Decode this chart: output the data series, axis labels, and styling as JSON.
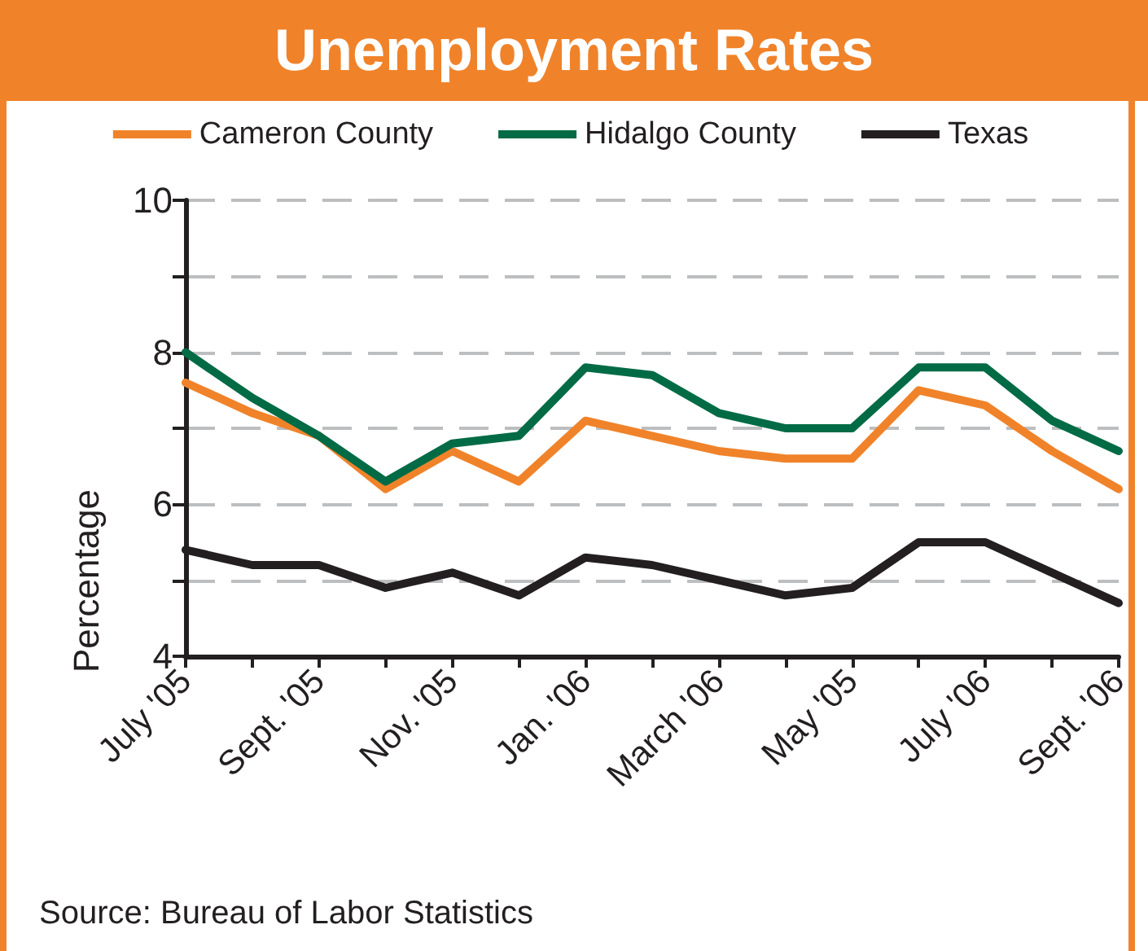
{
  "chart_data": {
    "type": "line",
    "title": "Unemployment Rates",
    "ylabel": "Percentage",
    "categories": [
      "July '05",
      null,
      "Sept. '05",
      null,
      "Nov. '05",
      null,
      "Jan. '06",
      null,
      "March '06",
      null,
      "May '05",
      null,
      "July '06",
      null,
      "Sept. '06"
    ],
    "series": [
      {
        "name": "Cameron County",
        "color": "#f0832a",
        "values": [
          7.6,
          7.2,
          6.9,
          6.2,
          6.7,
          6.3,
          7.1,
          6.9,
          6.7,
          6.6,
          6.6,
          7.5,
          7.3,
          6.7,
          6.2
        ]
      },
      {
        "name": "Hidalgo County",
        "color": "#006b45",
        "values": [
          8.0,
          7.4,
          6.9,
          6.3,
          6.8,
          6.9,
          7.8,
          7.7,
          7.2,
          7.0,
          7.0,
          7.8,
          7.8,
          7.1,
          6.7
        ]
      },
      {
        "name": "Texas",
        "color": "#231f20",
        "values": [
          5.4,
          5.2,
          5.2,
          4.9,
          5.1,
          4.8,
          5.3,
          5.2,
          5.0,
          4.8,
          4.9,
          5.5,
          5.5,
          5.1,
          4.7
        ]
      }
    ],
    "ylim": [
      4,
      10
    ],
    "yticks": [
      4,
      {
        "value": 5,
        "label": null
      },
      6,
      {
        "value": 7,
        "label": null
      },
      8,
      {
        "value": 9,
        "label": null
      },
      10
    ],
    "grid": "y",
    "legend": "top",
    "marker": "none",
    "line_style": "solid",
    "annotations": [
      "Source: Bureau of Labor Statistics"
    ]
  }
}
